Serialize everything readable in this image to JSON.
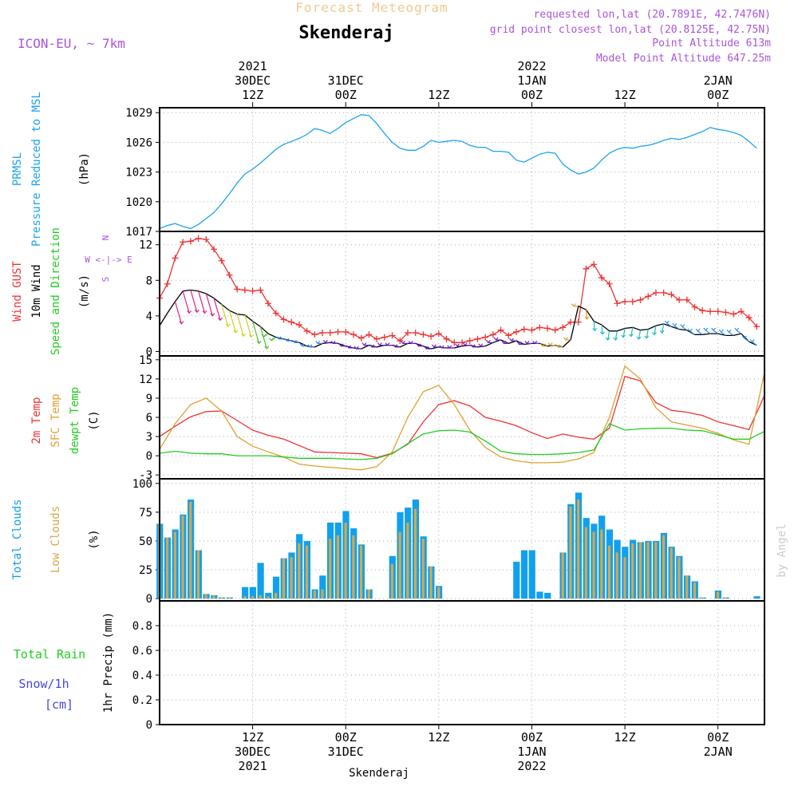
{
  "header": {
    "super_title": "Forecast Meteogram",
    "location": "Skenderaj",
    "model": "ICON-EU, ~ 7km",
    "requested": "requested lon,lat (20.7891E, 42.7476N)",
    "grid_point": "grid point closest lon,lat (20.8125E, 42.75N)",
    "point_alt": "Point Altitude 613m",
    "model_alt": "Model Point Altitude 647.25m",
    "watermark": "by Angel",
    "footer_location": "Skenderaj"
  },
  "colors": {
    "pressure": "#1aa3ef",
    "gust": "#ee3333",
    "wind": "#000000",
    "t2m": "#ee3333",
    "sfc": "#e0a030",
    "dewpt": "#22cc22",
    "total_clouds": "#11a0ee",
    "low_clouds": "#d8a848",
    "purple": "#aa55dd",
    "rain": "#22cc22",
    "snow": "#4444ee"
  },
  "time_axis": {
    "top": [
      {
        "t": 12,
        "lines": [
          "2021",
          "30DEC",
          "12Z"
        ]
      },
      {
        "t": 24,
        "lines": [
          "31DEC",
          "00Z"
        ]
      },
      {
        "t": 36,
        "lines": [
          "12Z"
        ]
      },
      {
        "t": 48,
        "lines": [
          "2022",
          "1JAN",
          "00Z"
        ]
      },
      {
        "t": 60,
        "lines": [
          "12Z"
        ]
      },
      {
        "t": 72,
        "lines": [
          "2JAN",
          "00Z"
        ]
      }
    ],
    "bottom": [
      {
        "t": 12,
        "lines": [
          "12Z",
          "30DEC",
          "2021"
        ]
      },
      {
        "t": 24,
        "lines": [
          "00Z",
          "31DEC"
        ]
      },
      {
        "t": 36,
        "lines": [
          "12Z"
        ]
      },
      {
        "t": 48,
        "lines": [
          "00Z",
          "1JAN",
          "2022"
        ]
      },
      {
        "t": 60,
        "lines": [
          "12Z"
        ]
      },
      {
        "t": 72,
        "lines": [
          "00Z",
          "2JAN"
        ]
      }
    ]
  },
  "chart_data": [
    {
      "type": "line",
      "labels": [
        "PRMSL",
        "Pressure Reduced to MSL",
        "(hPa)"
      ],
      "ylim": [
        1017,
        1029.5
      ],
      "yticks": [
        1017,
        1020,
        1023,
        1026,
        1029
      ],
      "x": [
        0,
        1,
        2,
        3,
        4,
        5,
        6,
        7,
        8,
        9,
        10,
        11,
        12,
        13,
        14,
        15,
        16,
        17,
        18,
        19,
        20,
        21,
        22,
        23,
        24,
        25,
        26,
        27,
        28,
        29,
        30,
        31,
        32,
        33,
        34,
        35,
        36,
        37,
        38,
        39,
        40,
        41,
        42,
        43,
        44,
        45,
        46,
        47,
        48,
        49,
        50,
        51,
        52,
        53,
        54,
        55,
        56,
        57,
        58,
        59,
        60,
        61,
        62,
        63,
        64,
        65,
        66,
        67,
        68,
        69,
        70,
        71,
        72,
        73,
        74,
        75,
        76,
        77
      ],
      "series": [
        {
          "color_key": "pressure",
          "values": [
            1017.3,
            1017.6,
            1017.8,
            1017.5,
            1017.3,
            1017.7,
            1018.3,
            1018.9,
            1019.8,
            1020.8,
            1021.9,
            1022.8,
            1023.3,
            1023.9,
            1024.6,
            1025.3,
            1025.8,
            1026.1,
            1026.4,
            1026.8,
            1027.4,
            1027.2,
            1026.9,
            1027.4,
            1028.0,
            1028.4,
            1028.8,
            1028.7,
            1027.9,
            1026.9,
            1026.0,
            1025.4,
            1025.2,
            1025.2,
            1025.6,
            1026.2,
            1026.0,
            1026.1,
            1026.2,
            1026.1,
            1025.7,
            1025.5,
            1025.5,
            1025.1,
            1025.1,
            1025.0,
            1024.2,
            1024.0,
            1024.4,
            1024.8,
            1025.0,
            1024.9,
            1023.8,
            1023.2,
            1022.8,
            1023.0,
            1023.4,
            1024.2,
            1024.9,
            1025.3,
            1025.5,
            1025.4,
            1025.6,
            1025.7,
            1025.9,
            1026.2,
            1026.4,
            1026.3,
            1026.5,
            1026.8,
            1027.1,
            1027.5,
            1027.3,
            1027.2,
            1027.0,
            1026.7,
            1026.1,
            1025.4
          ]
        }
      ]
    },
    {
      "type": "line",
      "labels": [
        "Wind GUST",
        "10m Wind",
        "Speed and Direction",
        "(m/s)"
      ],
      "compass": [
        "N",
        "W <-|-> E",
        "S"
      ],
      "ylim": [
        -0.5,
        13.5
      ],
      "yticks": [
        0,
        4,
        8,
        12
      ],
      "x": [
        0,
        1,
        2,
        3,
        4,
        5,
        6,
        7,
        8,
        9,
        10,
        11,
        12,
        13,
        14,
        15,
        16,
        17,
        18,
        19,
        20,
        21,
        22,
        23,
        24,
        25,
        26,
        27,
        28,
        29,
        30,
        31,
        32,
        33,
        34,
        35,
        36,
        37,
        38,
        39,
        40,
        41,
        42,
        43,
        44,
        45,
        46,
        47,
        48,
        49,
        50,
        51,
        52,
        53,
        54,
        55,
        56,
        57,
        58,
        59,
        60,
        61,
        62,
        63,
        64,
        65,
        66,
        67,
        68,
        69,
        70,
        71,
        72,
        73,
        74,
        75,
        76,
        77
      ],
      "series": [
        {
          "name": "gust",
          "color_key": "gust",
          "markers": "plus",
          "values": [
            6.0,
            7.6,
            10.5,
            12.3,
            12.4,
            12.7,
            12.6,
            11.5,
            10.2,
            8.6,
            7.0,
            6.9,
            6.8,
            6.9,
            5.4,
            4.3,
            3.6,
            3.3,
            3.0,
            2.3,
            1.9,
            2.1,
            2.1,
            2.2,
            2.2,
            1.9,
            1.5,
            1.9,
            1.4,
            1.6,
            1.8,
            1.2,
            2.1,
            2.1,
            1.9,
            1.7,
            2.0,
            1.4,
            1.0,
            1.0,
            1.2,
            1.4,
            1.6,
            1.9,
            2.4,
            1.8,
            2.2,
            2.5,
            2.4,
            2.7,
            2.6,
            2.4,
            2.7,
            3.3,
            3.3,
            9.3,
            9.8,
            8.3,
            7.6,
            5.4,
            5.6,
            5.6,
            5.8,
            6.2,
            6.6,
            6.6,
            6.4,
            5.8,
            5.8,
            5.0,
            4.6,
            4.5,
            4.5,
            4.4,
            4.2,
            4.5,
            3.8,
            2.8
          ]
        },
        {
          "name": "wind",
          "color_key": "wind",
          "values": [
            2.9,
            4.3,
            5.6,
            6.8,
            6.9,
            6.8,
            6.5,
            6.0,
            5.3,
            4.6,
            4.2,
            4.1,
            3.4,
            2.8,
            2.0,
            1.6,
            1.4,
            1.2,
            1.0,
            0.6,
            0.5,
            0.9,
            1.0,
            0.9,
            0.6,
            0.4,
            0.3,
            0.7,
            0.5,
            0.7,
            0.7,
            0.5,
            0.9,
            0.9,
            0.6,
            0.3,
            0.5,
            0.4,
            0.4,
            0.6,
            0.7,
            0.5,
            0.6,
            1.0,
            1.3,
            0.9,
            1.2,
            0.8,
            0.9,
            0.9,
            0.6,
            0.7,
            0.5,
            1.3,
            5.1,
            4.7,
            3.4,
            3.0,
            2.3,
            2.3,
            2.6,
            2.7,
            2.4,
            2.5,
            2.9,
            3.1,
            2.8,
            2.5,
            2.4,
            1.9,
            1.9,
            2.0,
            2.0,
            1.8,
            1.8,
            2.0,
            1.1,
            0.7
          ]
        }
      ]
    },
    {
      "type": "line",
      "labels": [
        "2m Temp",
        "SFC Temp",
        "dewpt Temp",
        "(C)"
      ],
      "ylim": [
        -3.6,
        15.6
      ],
      "yticks": [
        -3,
        0,
        3,
        6,
        9,
        12,
        15
      ],
      "x": [
        0,
        2,
        4,
        6,
        8,
        10,
        12,
        14,
        16,
        18,
        20,
        22,
        24,
        26,
        28,
        30,
        32,
        34,
        36,
        38,
        40,
        42,
        44,
        46,
        48,
        50,
        52,
        54,
        56,
        58,
        60,
        62,
        64,
        66,
        68,
        70,
        72,
        74,
        76,
        78
      ],
      "series": [
        {
          "name": "t2m",
          "color_key": "t2m",
          "values": [
            3.0,
            4.6,
            6.1,
            6.9,
            7.0,
            5.5,
            4.0,
            3.2,
            2.6,
            1.6,
            0.6,
            0.5,
            0.4,
            0.3,
            -0.3,
            0.4,
            1.8,
            5.3,
            8.0,
            8.6,
            7.8,
            6.0,
            5.4,
            4.7,
            3.6,
            2.7,
            3.4,
            2.9,
            2.6,
            4.3,
            12.4,
            11.7,
            8.3,
            7.1,
            6.8,
            6.3,
            5.3,
            4.7,
            4.1,
            9.4
          ]
        },
        {
          "name": "sfc",
          "color_key": "sfc",
          "values": [
            1.0,
            5.0,
            8.0,
            9.0,
            7.0,
            3.0,
            1.5,
            0.6,
            -0.2,
            -1.3,
            -1.6,
            -1.8,
            -2.0,
            -2.2,
            -1.7,
            0.6,
            6.0,
            10.0,
            11.0,
            8.0,
            4.0,
            1.3,
            -0.2,
            -0.8,
            -1.1,
            -1.1,
            -1.0,
            -0.5,
            0.5,
            6.0,
            14.0,
            12.0,
            7.5,
            5.3,
            4.8,
            4.3,
            3.5,
            2.5,
            1.8,
            13.0
          ]
        },
        {
          "name": "dewpt",
          "color_key": "dewpt",
          "values": [
            0.4,
            0.7,
            0.4,
            0.3,
            0.3,
            0.0,
            0.0,
            0.0,
            -0.2,
            -0.4,
            -0.4,
            -0.4,
            -0.5,
            -0.6,
            -0.4,
            0.3,
            1.9,
            3.4,
            3.9,
            4.0,
            3.7,
            2.3,
            0.7,
            0.3,
            0.2,
            0.2,
            0.3,
            0.5,
            0.9,
            5.0,
            4.0,
            4.2,
            4.3,
            4.3,
            4.0,
            3.9,
            3.3,
            2.6,
            2.6,
            3.8
          ]
        }
      ]
    },
    {
      "type": "bar",
      "labels": [
        "Total Clouds",
        "Low Clouds",
        "(%)"
      ],
      "ylim": [
        -2,
        104
      ],
      "yticks": [
        0,
        25,
        50,
        75,
        100
      ],
      "x": [
        0,
        1,
        2,
        3,
        4,
        5,
        6,
        7,
        8,
        9,
        10,
        11,
        12,
        13,
        14,
        15,
        16,
        17,
        18,
        19,
        20,
        21,
        22,
        23,
        24,
        25,
        26,
        27,
        28,
        29,
        30,
        31,
        32,
        33,
        34,
        35,
        36,
        37,
        38,
        39,
        40,
        41,
        42,
        43,
        44,
        45,
        46,
        47,
        48,
        49,
        50,
        51,
        52,
        53,
        54,
        55,
        56,
        57,
        58,
        59,
        60,
        61,
        62,
        63,
        64,
        65,
        66,
        67,
        68,
        69,
        70,
        71,
        72,
        73,
        74,
        75,
        76,
        77
      ],
      "series": [
        {
          "name": "total",
          "color_key": "total_clouds",
          "values": [
            65,
            53,
            60,
            73,
            86,
            42,
            4,
            3,
            1,
            1,
            0,
            10,
            10,
            31,
            5,
            19,
            35,
            40,
            56,
            50,
            8,
            20,
            66,
            66,
            76,
            61,
            47,
            8,
            0,
            0,
            37,
            75,
            79,
            86,
            54,
            28,
            11,
            0,
            0,
            0,
            0,
            0,
            0,
            0,
            0,
            0,
            32,
            42,
            42,
            6,
            5,
            0,
            40,
            82,
            92,
            70,
            65,
            72,
            60,
            51,
            45,
            51,
            49,
            50,
            50,
            57,
            45,
            37,
            20,
            15,
            1,
            0,
            7,
            1,
            0,
            0,
            0,
            2
          ]
        },
        {
          "name": "low",
          "color_key": "low_clouds",
          "values": [
            65,
            53,
            58,
            72,
            84,
            42,
            4,
            3,
            1,
            1,
            0,
            2,
            2,
            3,
            2,
            5,
            35,
            36,
            48,
            46,
            7,
            8,
            52,
            55,
            66,
            55,
            46,
            8,
            0,
            0,
            30,
            58,
            66,
            78,
            52,
            28,
            10,
            0,
            0,
            0,
            0,
            0,
            0,
            0,
            0,
            0,
            0,
            0,
            0,
            0,
            0,
            0,
            40,
            80,
            86,
            62,
            58,
            60,
            46,
            40,
            36,
            48,
            49,
            49,
            49,
            55,
            44,
            36,
            20,
            14,
            1,
            0,
            6,
            1,
            0,
            0,
            0,
            0
          ]
        }
      ]
    },
    {
      "type": "bar",
      "labels": [
        "Total Rain",
        "Snow/1h",
        "[cm]",
        "1hr Precip (mm)"
      ],
      "ylim": [
        0,
        1
      ],
      "yticks": [
        0,
        0.2,
        0.4,
        0.6,
        0.8
      ],
      "x": [
        0,
        1,
        2,
        3,
        4,
        5,
        6,
        7,
        8,
        9,
        10,
        11,
        12,
        13,
        14,
        15,
        16,
        17,
        18,
        19,
        20,
        21,
        22,
        23,
        24,
        25,
        26,
        27,
        28,
        29,
        30,
        31,
        32,
        33,
        34,
        35,
        36,
        37,
        38,
        39,
        40,
        41,
        42,
        43,
        44,
        45,
        46,
        47,
        48,
        49,
        50,
        51,
        52,
        53,
        54,
        55,
        56,
        57,
        58,
        59,
        60,
        61,
        62,
        63,
        64,
        65,
        66,
        67,
        68,
        69,
        70,
        71,
        72,
        73,
        74,
        75,
        76,
        77
      ],
      "series": [
        {
          "name": "rain",
          "color_key": "rain",
          "values": [
            0,
            0,
            0,
            0,
            0,
            0,
            0,
            0,
            0,
            0,
            0,
            0,
            0,
            0,
            0,
            0,
            0,
            0,
            0,
            0,
            0,
            0,
            0,
            0,
            0,
            0,
            0,
            0,
            0,
            0,
            0,
            0,
            0,
            0,
            0,
            0,
            0,
            0,
            0,
            0,
            0,
            0,
            0,
            0,
            0,
            0,
            0,
            0,
            0,
            0,
            0,
            0,
            0,
            0,
            0,
            0,
            0,
            0,
            0,
            0,
            0,
            0,
            0,
            0,
            0,
            0,
            0,
            0,
            0,
            0,
            0,
            0,
            0,
            0,
            0,
            0,
            0,
            0
          ]
        }
      ]
    }
  ]
}
